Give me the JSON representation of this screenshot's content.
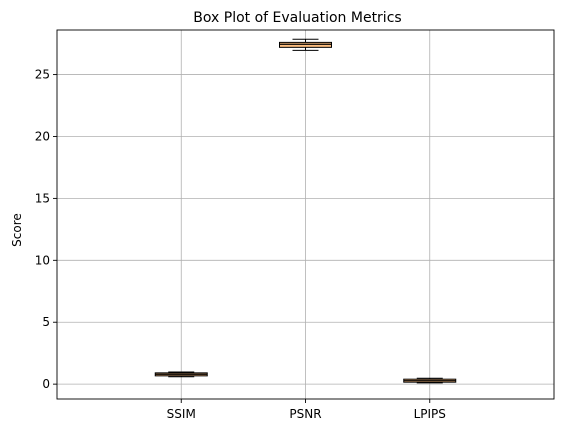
{
  "chart_data": {
    "type": "box",
    "title": "Box Plot of Evaluation Metrics",
    "xlabel": "",
    "ylabel": "Score",
    "categories": [
      "SSIM",
      "PSNR",
      "LPIPS"
    ],
    "boxes": [
      {
        "category": "SSIM",
        "whisker_low": 0.6,
        "q1": 0.68,
        "median": 0.8,
        "q3": 0.9,
        "whisker_high": 0.98
      },
      {
        "category": "PSNR",
        "whisker_low": 26.95,
        "q1": 27.2,
        "median": 27.45,
        "q3": 27.6,
        "whisker_high": 27.85
      },
      {
        "category": "LPIPS",
        "whisker_low": 0.1,
        "q1": 0.18,
        "median": 0.28,
        "q3": 0.38,
        "whisker_high": 0.48
      }
    ],
    "ylim": [
      -1.2,
      28.6
    ],
    "yticks": [
      0,
      5,
      10,
      15,
      20,
      25
    ],
    "grid": true,
    "legend": "none",
    "colors": {
      "box_fill": "#ffbf80",
      "box_edge": "#000000",
      "median": "#000000",
      "grid": "#b0b0b0",
      "axes": "#000000"
    }
  }
}
